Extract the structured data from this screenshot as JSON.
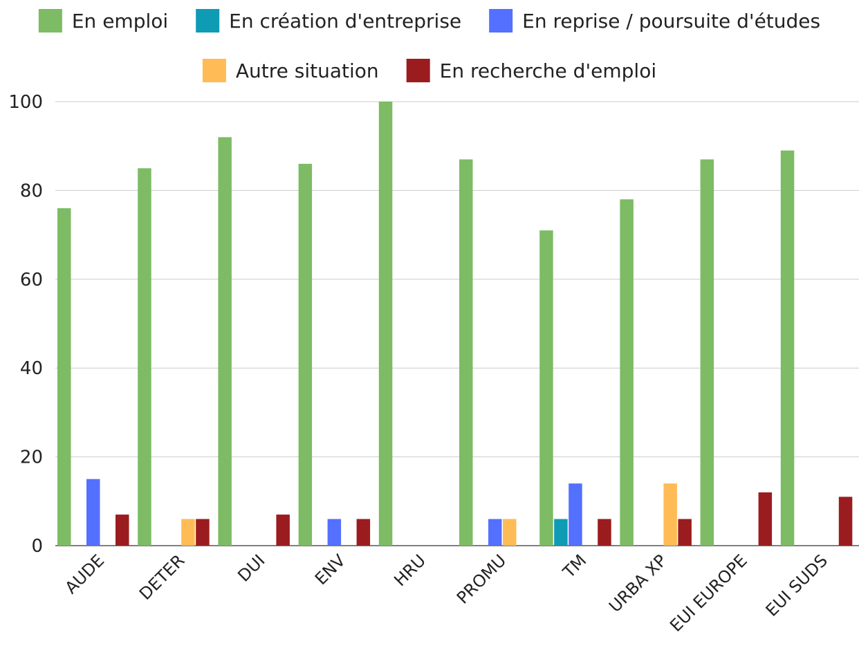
{
  "chart_data": {
    "type": "bar",
    "categories": [
      "AUDE",
      "DETER",
      "DUI",
      "ENV",
      "HRU",
      "PROMU",
      "TM",
      "URBA XP",
      "EUI EUROPE",
      "EUI SUDS"
    ],
    "series": [
      {
        "name": "En emploi",
        "color": "#7dbb64",
        "values": [
          76,
          85,
          92,
          86,
          100,
          87,
          71,
          78,
          87,
          89
        ]
      },
      {
        "name": "En création d'entreprise",
        "color": "#0f9bb4",
        "values": [
          0,
          0,
          0,
          0,
          0,
          0,
          6,
          0,
          0,
          0
        ]
      },
      {
        "name": "En reprise / poursuite d'études",
        "color": "#5470ff",
        "values": [
          15,
          0,
          0,
          6,
          0,
          6,
          14,
          0,
          0,
          0
        ]
      },
      {
        "name": "Autre situation",
        "color": "#ffbb55",
        "values": [
          0,
          6,
          0,
          0,
          0,
          6,
          0,
          14,
          0,
          0
        ]
      },
      {
        "name": "En recherche d'emploi",
        "color": "#9b1c1f",
        "values": [
          7,
          6,
          7,
          6,
          0,
          0,
          6,
          6,
          12,
          11
        ]
      }
    ],
    "ylim": [
      0,
      100
    ],
    "yticks": [
      0,
      20,
      40,
      60,
      80,
      100
    ],
    "grid": true,
    "legend_position": "top",
    "title": "",
    "xlabel": "",
    "ylabel": ""
  }
}
